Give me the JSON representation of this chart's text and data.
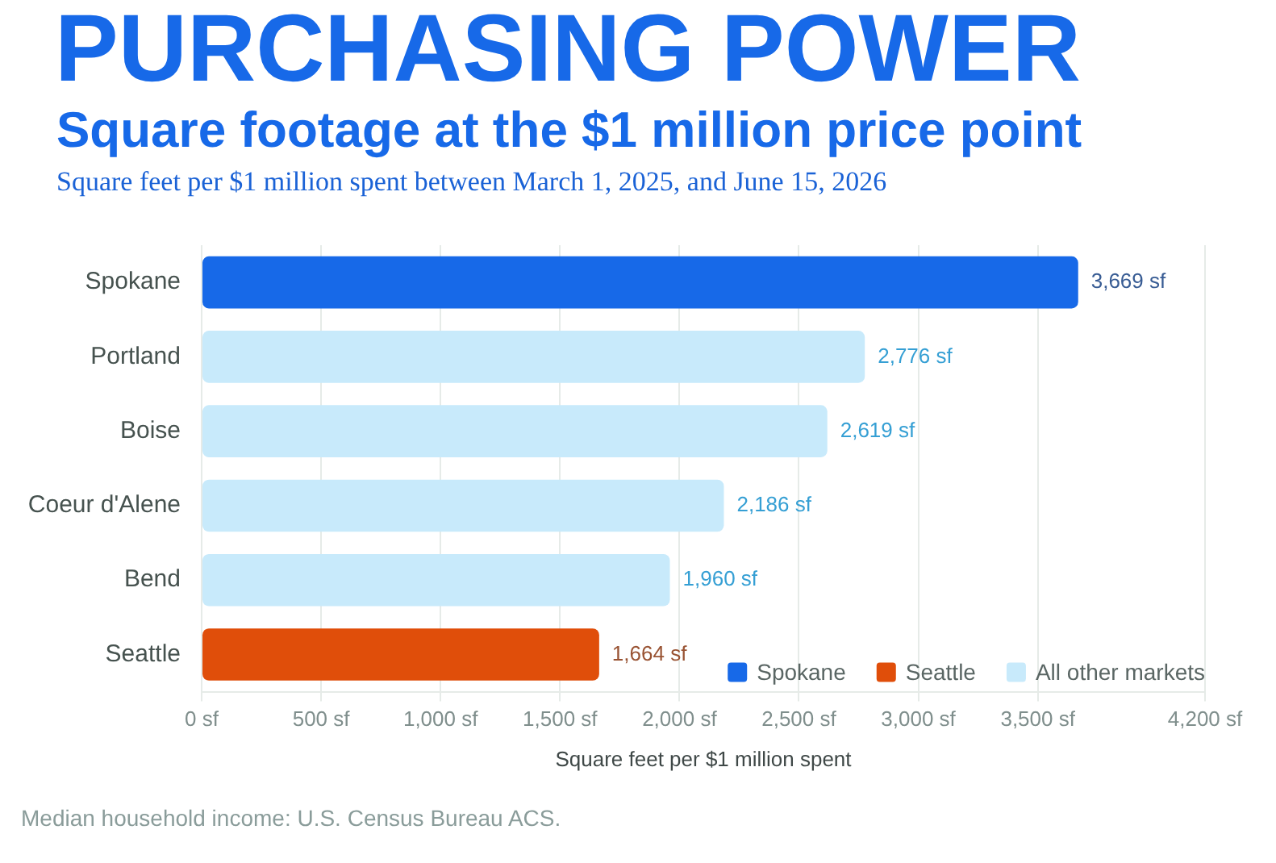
{
  "chart_data": {
    "type": "bar",
    "orientation": "horizontal",
    "stacked": true,
    "title": "PURCHASING POWER",
    "subtitle": "Square footage at the $1 million price point",
    "annotations": [
      "Square feet per $1 million spent between March 1, 2025, and June 15, 2026",
      "Median household income: U.S. Census Bureau ACS."
    ],
    "xlabel": "Square feet per $1 million spent",
    "categories": [
      "Spokane",
      "Portland",
      "Boise",
      "Coeur d'Alene",
      "Bend",
      "Seattle"
    ],
    "series": [
      {
        "name": "Spokane",
        "color": "#1769e8",
        "values": [
          3669,
          null,
          null,
          null,
          null,
          null
        ],
        "value_labels": [
          "3,669 sf",
          null,
          null,
          null,
          null,
          null
        ]
      },
      {
        "name": "Seattle",
        "color": "#e04e0a",
        "values": [
          null,
          null,
          null,
          null,
          null,
          1664
        ],
        "value_labels": [
          null,
          null,
          null,
          null,
          null,
          "1,664 sf"
        ]
      },
      {
        "name": "All other markets",
        "color": "#c8eafb",
        "values": [
          null,
          2776,
          2619,
          2186,
          1960,
          null
        ],
        "value_labels": [
          null,
          "2,776 sf",
          "2,619 sf",
          "2,186 sf",
          "1,960 sf",
          null
        ]
      }
    ],
    "xlim": [
      0,
      4200
    ],
    "xticks": [
      {
        "value": 0,
        "label": "0 sf"
      },
      {
        "value": 500,
        "label": "500 sf"
      },
      {
        "value": 1000,
        "label": "1,000 sf"
      },
      {
        "value": 1500,
        "label": "1,500 sf"
      },
      {
        "value": 2000,
        "label": "2,000 sf"
      },
      {
        "value": 2500,
        "label": "2,500 sf"
      },
      {
        "value": 3000,
        "label": "3,000 sf"
      },
      {
        "value": 3500,
        "label": "3,500 sf"
      },
      {
        "value": 4200,
        "label": "4,200 sf"
      }
    ],
    "grid": "x",
    "legend": "bottom right"
  }
}
